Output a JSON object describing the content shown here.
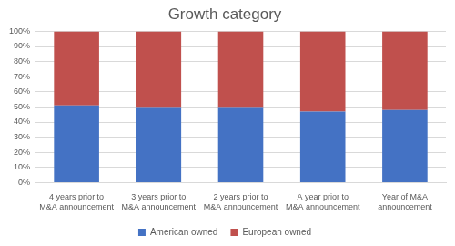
{
  "chart_data": {
    "type": "bar",
    "title": "Growth category",
    "categories": [
      "4 years prior to M&A announcement",
      "3 years prior to M&A announcement",
      "2 years prior to M&A announcement",
      "A year prior to M&A announcement",
      "Year of M&A announcement"
    ],
    "series": [
      {
        "name": "American owned",
        "color": "#4472c4",
        "values": [
          51,
          50,
          50,
          47,
          48
        ]
      },
      {
        "name": "European owned",
        "color": "#c0504d",
        "values": [
          49,
          50,
          50,
          53,
          52
        ]
      }
    ],
    "ylim": [
      0,
      100
    ],
    "yticks": [
      {
        "value": 0,
        "label": "0%"
      },
      {
        "value": 10,
        "label": "10%"
      },
      {
        "value": 20,
        "label": "20%"
      },
      {
        "value": 30,
        "label": "30%"
      },
      {
        "value": 40,
        "label": "40%"
      },
      {
        "value": 50,
        "label": "50%"
      },
      {
        "value": 60,
        "label": "60%"
      },
      {
        "value": 70,
        "label": "70%"
      },
      {
        "value": 80,
        "label": "80%"
      },
      {
        "value": 90,
        "label": "90%"
      },
      {
        "value": 100,
        "label": "100%"
      }
    ],
    "stacked": true,
    "grid": true,
    "legend": "bottom"
  }
}
